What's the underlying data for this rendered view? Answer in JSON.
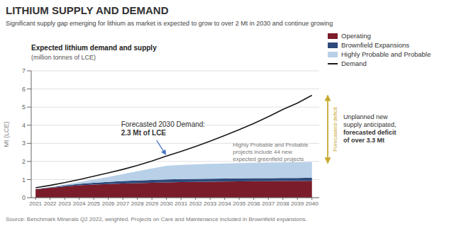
{
  "chart_data": {
    "type": "area",
    "title": "LITHIUM SUPPLY AND DEMAND",
    "subtitle": "Significant supply gap emerging for lithium as market is expected to grow to over 2 Mt in 2030 and continue growing",
    "chart_title": "Expected lithium demand and supply",
    "chart_subtitle": "(million tonnes of LCE)",
    "ylabel": "Mt (LCE)",
    "source": "Source: Benchmark Minerals Q2 2022, weighted. Projects on Care and Maintenance included in Brownfield expansions.",
    "x": [
      2021,
      2022,
      2023,
      2024,
      2025,
      2026,
      2027,
      2028,
      2029,
      2030,
      2031,
      2032,
      2033,
      2034,
      2035,
      2036,
      2037,
      2038,
      2039,
      2040
    ],
    "series": [
      {
        "name": "Operating",
        "type": "area",
        "color": "#7B1C2A",
        "values": [
          0.47,
          0.55,
          0.62,
          0.68,
          0.72,
          0.75,
          0.78,
          0.8,
          0.82,
          0.84,
          0.86,
          0.87,
          0.88,
          0.89,
          0.9,
          0.91,
          0.91,
          0.92,
          0.92,
          0.93
        ]
      },
      {
        "name": "Brownfield Expansions",
        "type": "area",
        "color": "#2E4A7A",
        "values": [
          0.0,
          0.02,
          0.05,
          0.08,
          0.1,
          0.12,
          0.14,
          0.15,
          0.16,
          0.17,
          0.17,
          0.17,
          0.17,
          0.17,
          0.17,
          0.17,
          0.17,
          0.17,
          0.17,
          0.17
        ]
      },
      {
        "name": "Highly Probable and Probable",
        "type": "area",
        "color": "#B8D0E8",
        "values": [
          0.0,
          0.02,
          0.05,
          0.1,
          0.18,
          0.27,
          0.38,
          0.51,
          0.63,
          0.75,
          0.78,
          0.8,
          0.82,
          0.83,
          0.84,
          0.85,
          0.86,
          0.86,
          0.87,
          0.87
        ]
      },
      {
        "name": "Demand",
        "type": "line",
        "color": "#1a1a1a",
        "values": [
          0.55,
          0.68,
          0.83,
          1.0,
          1.18,
          1.37,
          1.56,
          1.78,
          2.02,
          2.3,
          2.55,
          2.83,
          3.12,
          3.43,
          3.75,
          4.1,
          4.47,
          4.87,
          5.22,
          5.65
        ]
      }
    ],
    "stacked": true,
    "xlim": [
      2020.7,
      2040.5
    ],
    "xticks": [
      2021,
      2022,
      2023,
      2024,
      2025,
      2026,
      2027,
      2028,
      2029,
      2030,
      2031,
      2032,
      2033,
      2034,
      2035,
      2036,
      2037,
      2038,
      2039,
      2040
    ],
    "ylim": [
      0,
      7
    ],
    "yticks": [
      0,
      1,
      2,
      3,
      4,
      5,
      6,
      7
    ],
    "grid": true,
    "legend": "upper right",
    "annotations": [
      {
        "text": "Forecasted 2030 Demand:",
        "bold_text": "2.3 Mt of LCE",
        "x": 2030,
        "y": 2.3,
        "color": "#4472C4"
      },
      {
        "text": "Highly Probable and Probable\nprojects include 44 new\nexpected greenfield projects"
      }
    ],
    "gap": {
      "label": "Forecasted deficit",
      "from": 1.9,
      "to": 5.65,
      "color": "#C8A930",
      "text": "Unplanned new\nsupply anticipated,",
      "bold_text": "forecasted deficit\nof over 3.3 Mt"
    }
  }
}
